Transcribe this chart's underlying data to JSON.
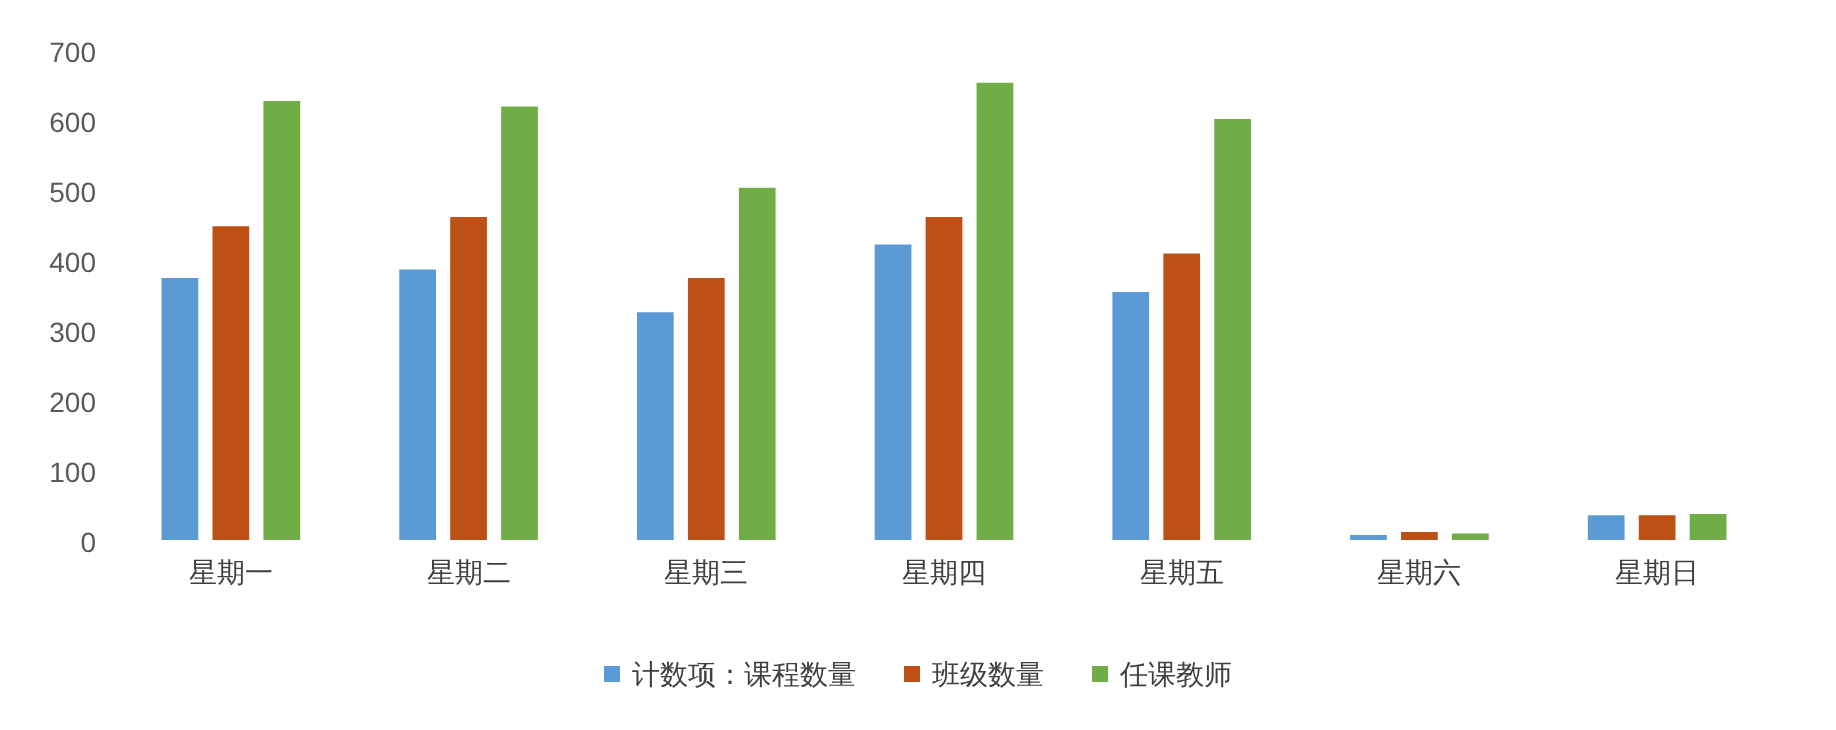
{
  "chart_data": {
    "type": "bar",
    "categories": [
      "星期一",
      "星期二",
      "星期三",
      "星期四",
      "星期五",
      "星期六",
      "星期日"
    ],
    "series": [
      {
        "name": "计数项：课程数量",
        "color": "#5b9bd5",
        "values": [
          380,
          392,
          331,
          428,
          360,
          13,
          41
        ]
      },
      {
        "name": "班级数量",
        "color": "#bd5015",
        "values": [
          454,
          467,
          380,
          467,
          415,
          17,
          41
        ]
      },
      {
        "name": "任课教师",
        "color": "#70ad47",
        "values": [
          633,
          625,
          509,
          659,
          607,
          15,
          43
        ]
      }
    ],
    "ylim": [
      0,
      700
    ],
    "yticks": [
      0,
      100,
      200,
      300,
      400,
      500,
      600,
      700
    ],
    "grid": false,
    "legend": "bottom"
  }
}
